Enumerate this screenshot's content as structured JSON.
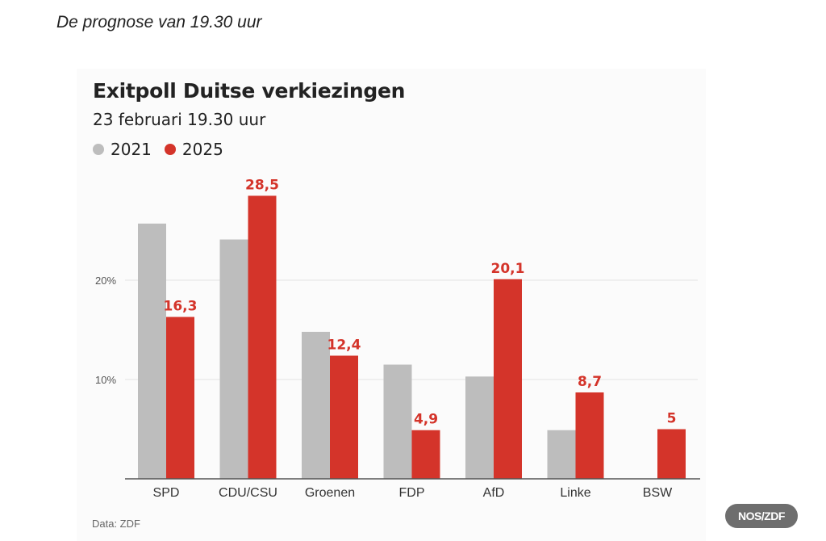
{
  "caption": "De prognose van 19.30 uur",
  "source": "Data: ZDF",
  "badge": "NOS/ZDF",
  "colors": {
    "2021": "#bdbdbd",
    "2025": "#d4342a"
  },
  "chart_data": {
    "type": "bar",
    "title": "Exitpoll Duitse verkiezingen",
    "subtitle": "23 februari 19.30 uur",
    "xlabel": "",
    "ylabel": "",
    "ylim": [
      0,
      30
    ],
    "yticks": [
      {
        "value": 10,
        "label": "10%"
      },
      {
        "value": 20,
        "label": "20%"
      }
    ],
    "grid": true,
    "legend_placement": "top-left",
    "categories": [
      "SPD",
      "CDU/CSU",
      "Groenen",
      "FDP",
      "AfD",
      "Linke",
      "BSW"
    ],
    "series": [
      {
        "name": "2021",
        "values": [
          25.7,
          24.1,
          14.8,
          11.5,
          10.3,
          4.9,
          null
        ]
      },
      {
        "name": "2025",
        "values": [
          16.3,
          28.5,
          12.4,
          4.9,
          20.1,
          8.7,
          5
        ],
        "labels": [
          "16,3",
          "28,5",
          "12,4",
          "4,9",
          "20,1",
          "8,7",
          "5"
        ]
      }
    ]
  }
}
